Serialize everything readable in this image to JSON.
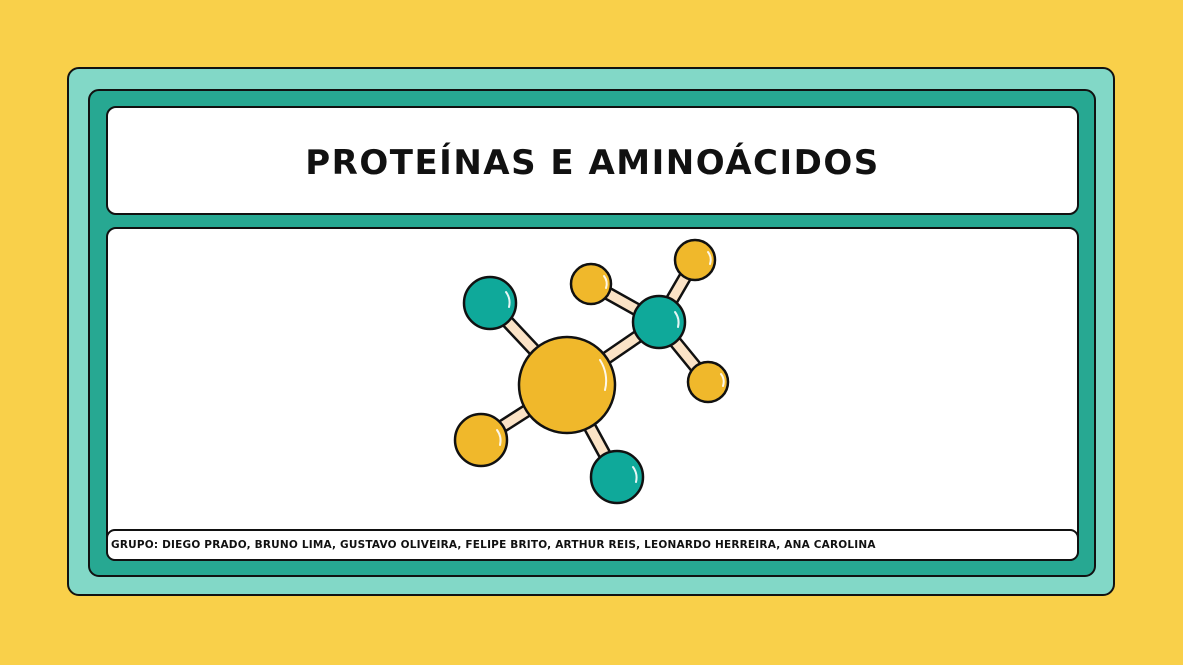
{
  "slide": {
    "title": "PROTEÍNAS E AMINOÁCIDOS",
    "group": "GRUPO: DIEGO PRADO, BRUNO LIMA, GUSTAVO OLIVEIRA, FELIPE BRITO, ARTHUR REIS, LEONARDO HERREIRA, ANA CAROLINA"
  },
  "colors": {
    "background": "#F9D04A",
    "outer_frame": "#82D8C7",
    "inner_frame": "#27A892",
    "atom_yellow": "#F0B82B",
    "atom_teal": "#0FA99A",
    "bond": "#FBE3C6"
  },
  "illustration": {
    "icon": "molecule-illustration"
  }
}
